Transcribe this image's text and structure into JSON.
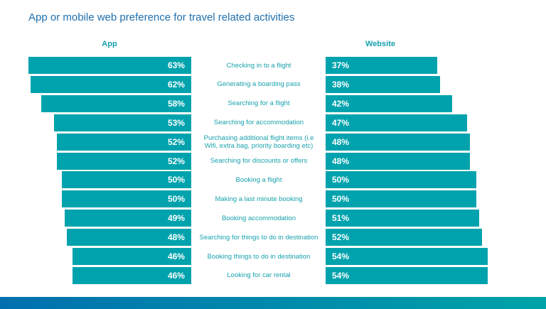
{
  "chart_data": {
    "type": "bar",
    "title": "App or mobile web preference for travel related activities",
    "series": [
      {
        "name": "App",
        "values": [
          63,
          62,
          58,
          53,
          52,
          52,
          50,
          50,
          49,
          48,
          46,
          46
        ]
      },
      {
        "name": "Website",
        "values": [
          37,
          38,
          42,
          47,
          48,
          48,
          50,
          50,
          51,
          52,
          54,
          54
        ]
      }
    ],
    "categories": [
      "Checking in to a flight",
      "Generating a boarding pass",
      "Searching for a flight",
      "Searching for accommodation",
      "Purchasing additional flight items (i.e  Wifi, extra bag, priority boarding etc)",
      "Searching for discounts or offers",
      "Booking a flight",
      "Making a last minute booking",
      "Booking accommodation",
      "Searching for things to do in destination",
      "Booking things to do in destination",
      "Looking for car rental"
    ],
    "unit": "%",
    "colors": {
      "bar": "#00a3ad",
      "title": "#1f6fae"
    }
  }
}
